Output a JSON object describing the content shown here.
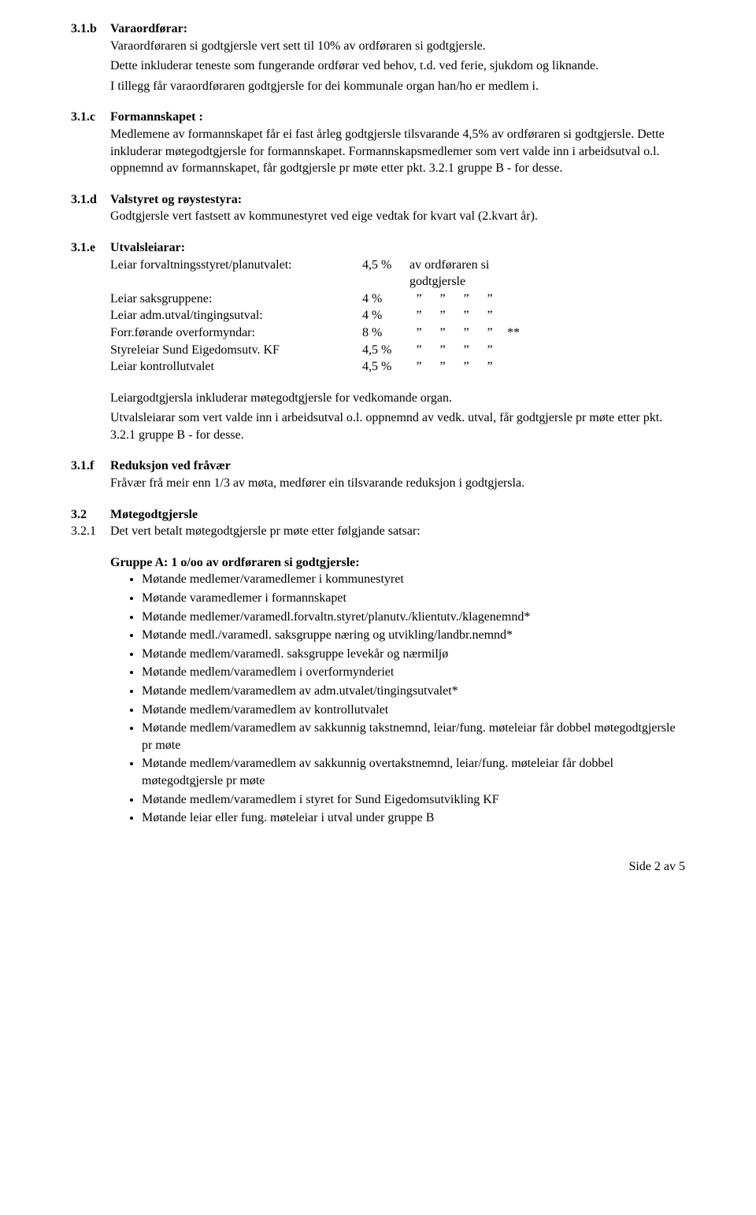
{
  "s31b": {
    "num": "3.1.b",
    "title": "Varaordførar:",
    "p1": "Varaordføraren si godtgjersle vert sett til 10% av ordføraren si godtgjersle.",
    "p2": "Dette inkluderar teneste som fungerande ordførar ved behov, t.d. ved ferie, sjukdom og liknande.",
    "p3": "I tillegg får varaordføraren godtgjersle for dei kommunale organ han/ho er medlem i."
  },
  "s31c": {
    "num": "3.1.c",
    "title": "Formannskapet :",
    "p1": "Medlemene  av formannskapet får ei fast årleg godtgjersle tilsvarande 4,5% av ordføraren si godtgjersle. Dette inkluderar møtegodtgjersle for formannskapet. Formannskapsmedlemer som vert valde inn i arbeidsutval o.l. oppnemnd av formannskapet, får godtgjersle pr møte etter pkt. 3.2.1 gruppe B - for desse."
  },
  "s31d": {
    "num": "3.1.d",
    "title": "Valstyret og røystestyra:",
    "p1": "Godtgjersle vert fastsett av kommunestyret ved eige vedtak for kvart val (2.kvart år)."
  },
  "s31e": {
    "num": "3.1.e",
    "title": "Utvalsleiarar:",
    "rows": [
      {
        "name": "Leiar forvaltningsstyret/planutvalet:",
        "pct": "4,5 %",
        "tail": "av ordføraren si godtgjersle",
        "star": ""
      },
      {
        "name": "Leiar saksgruppene:",
        "pct": "4 %",
        "tail": "",
        "star": ""
      },
      {
        "name": "Leiar adm.utval/tingingsutval:",
        "pct": "4 %",
        "tail": "",
        "star": ""
      },
      {
        "name": "Forr.førande overformyndar:",
        "pct": "8 %",
        "tail": "",
        "star": "**"
      },
      {
        "name": "Styreleiar Sund Eigedomsutv. KF",
        "pct": "4,5 %",
        "tail": "",
        "star": ""
      },
      {
        "name": "Leiar kontrollutvalet",
        "pct": "4,5  %",
        "tail": "",
        "star": ""
      }
    ],
    "quote": "”",
    "p2": "Leiargodtgjersla inkluderar møtegodtgjersle for vedkomande organ.",
    "p3": "Utvalsleiarar som vert valde inn i arbeidsutval o.l. oppnemnd av vedk. utval, får godtgjersle pr møte etter pkt. 3.2.1 gruppe B - for desse."
  },
  "s31f": {
    "num": "3.1.f",
    "title": "Reduksjon ved fråvær",
    "p1": "Fråvær frå meir enn 1/3 av møta, medfører ein tilsvarande reduksjon i godtgjersla."
  },
  "s32": {
    "num": "3.2",
    "title": "Møtegodtgjersle",
    "sub_num": "3.2.1",
    "sub_text": "Det vert betalt møtegodtgjersle pr møte etter følgjande satsar:",
    "group_a": "Gruppe A:  1 o/oo av ordføraren si godtgjersle:",
    "bullets": [
      "Møtande medlemer/varamedlemer i kommunestyret",
      "Møtande varamedlemer i formannskapet",
      "Møtande medlemer/varamedl.forvaltn.styret/planutv./klientutv./klagenemnd*",
      "Møtande medl./varamedl. saksgruppe næring og utvikling/landbr.nemnd*",
      "Møtande medlem/varamedl. saksgruppe levekår og nærmiljø",
      "Møtande medlem/varamedlem i overformynderiet",
      "Møtande medlem/varamedlem av adm.utvalet/tingingsutvalet*",
      "Møtande medlem/varamedlem av kontrollutvalet",
      "Møtande medlem/varamedlem av sakkunnig takstnemnd, leiar/fung. møteleiar får dobbel møtegodtgjersle pr møte",
      "Møtande medlem/varamedlem av sakkunnig overtakstnemnd, leiar/fung. møteleiar får dobbel møtegodtgjersle pr møte",
      "Møtande medlem/varamedlem i styret for Sund Eigedomsutvikling KF",
      "Møtande leiar eller fung. møteleiar i utval under gruppe B"
    ]
  },
  "footer": "Side 2 av 5"
}
